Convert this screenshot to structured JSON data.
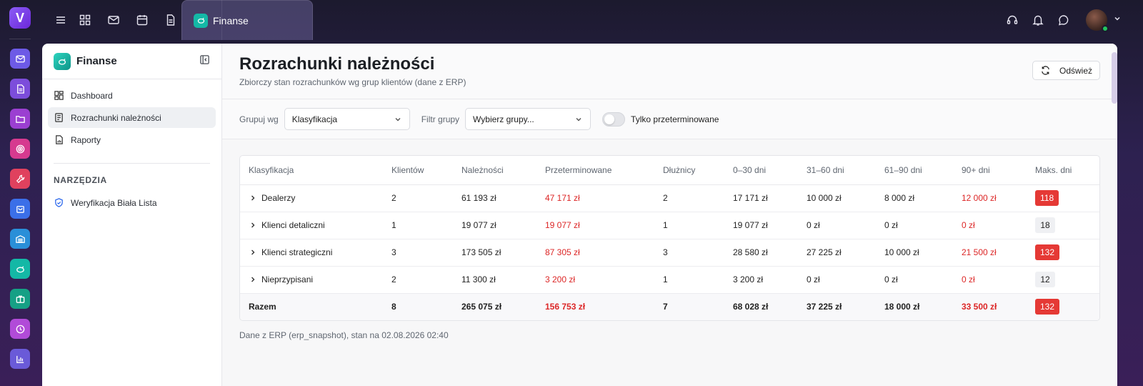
{
  "topbar": {
    "active_tab": "Finanse"
  },
  "sidebar": {
    "title": "Finanse",
    "items": [
      {
        "label": "Dashboard"
      },
      {
        "label": "Rozrachunki należności"
      },
      {
        "label": "Raporty"
      }
    ],
    "section_title": "NARZĘDZIA",
    "tools": [
      {
        "label": "Weryfikacja Biała Lista"
      }
    ]
  },
  "page": {
    "title": "Rozrachunki należności",
    "subtitle": "Zbiorczy stan rozrachunków wg grup klientów (dane z ERP)",
    "refresh_label": "Odśwież"
  },
  "filters": {
    "group_by_label": "Grupuj wg",
    "group_by_value": "Klasyfikacja",
    "group_filter_label": "Filtr grupy",
    "group_filter_value": "Wybierz grupy...",
    "overdue_only_label": "Tylko przeterminowane"
  },
  "table": {
    "headers": [
      "Klasyfikacja",
      "Klientów",
      "Należności",
      "Przeterminowane",
      "Dłużnicy",
      "0–30 dni",
      "31–60 dni",
      "61–90 dni",
      "90+ dni",
      "Maks. dni"
    ],
    "rows": [
      {
        "name": "Dealerzy",
        "clients": "2",
        "receivables": "61 193 zł",
        "overdue": "47 171 zł",
        "debtors": "2",
        "d0_30": "17 171 zł",
        "d31_60": "10 000 zł",
        "d61_90": "8 000 zł",
        "d90": "12 000 zł",
        "max_days": "118"
      },
      {
        "name": "Klienci detaliczni",
        "clients": "1",
        "receivables": "19 077 zł",
        "overdue": "19 077 zł",
        "debtors": "1",
        "d0_30": "19 077 zł",
        "d31_60": "0 zł",
        "d61_90": "0 zł",
        "d90": "0 zł",
        "max_days": "18"
      },
      {
        "name": "Klienci strategiczni",
        "clients": "3",
        "receivables": "173 505 zł",
        "overdue": "87 305 zł",
        "debtors": "3",
        "d0_30": "28 580 zł",
        "d31_60": "27 225 zł",
        "d61_90": "10 000 zł",
        "d90": "21 500 zł",
        "max_days": "132"
      },
      {
        "name": "Nieprzypisani",
        "clients": "2",
        "receivables": "11 300 zł",
        "overdue": "3 200 zł",
        "debtors": "1",
        "d0_30": "3 200 zł",
        "d31_60": "0 zł",
        "d61_90": "0 zł",
        "d90": "0 zł",
        "max_days": "12"
      }
    ],
    "total": {
      "name": "Razem",
      "clients": "8",
      "receivables": "265 075 zł",
      "overdue": "156 753 zł",
      "debtors": "7",
      "d0_30": "68 028 zł",
      "d31_60": "37 225 zł",
      "d61_90": "18 000 zł",
      "d90": "33 500 zł",
      "max_days": "132"
    }
  },
  "footer_note": "Dane z ERP (erp_snapshot), stan na 02.08.2026 02:40",
  "colors": {
    "accent_overdue": "#dc2626",
    "badge_high": "#e53935",
    "brand_teal": "#14b8a6"
  }
}
